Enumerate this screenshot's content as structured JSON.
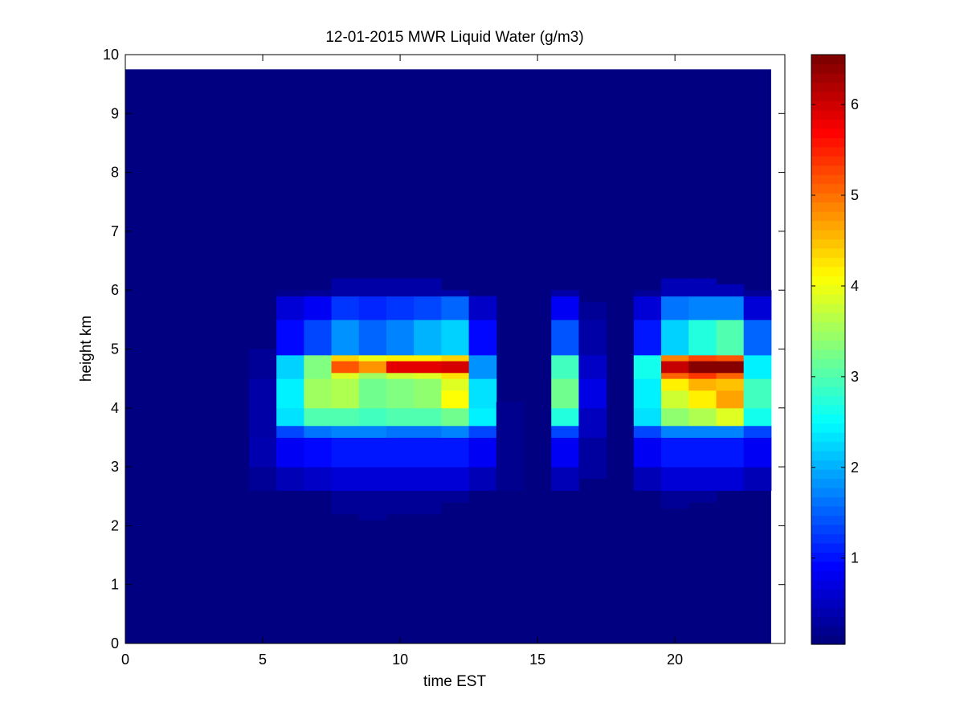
{
  "chart_data": {
    "type": "heatmap",
    "title": "12-01-2015 MWR Liquid Water (g/m3)",
    "xlabel": "time EST",
    "ylabel": "height km",
    "xlim": [
      0,
      24
    ],
    "ylim": [
      0,
      10
    ],
    "xticks": [
      0,
      5,
      10,
      15,
      20
    ],
    "yticks": [
      0,
      1,
      2,
      3,
      4,
      5,
      6,
      7,
      8,
      9,
      10
    ],
    "data_extent": {
      "x": [
        0,
        23.5
      ],
      "y": [
        0,
        9.75
      ]
    },
    "colorbar": {
      "colormap": "jet",
      "range": [
        0.05,
        6.55
      ],
      "ticks": [
        1,
        2,
        3,
        4,
        5,
        6
      ]
    },
    "background_value": 0.05,
    "cells": [
      {
        "t": [
          4.5,
          5.5
        ],
        "values": [
          [
            2.6,
            3.0,
            0.2
          ],
          [
            3.0,
            3.5,
            0.35
          ],
          [
            3.5,
            4.5,
            0.3
          ],
          [
            4.5,
            5.0,
            0.2
          ]
        ]
      },
      {
        "t": [
          5.5,
          6.5
        ],
        "values": [
          [
            2.6,
            3.0,
            0.4
          ],
          [
            3.0,
            3.5,
            0.8
          ],
          [
            3.5,
            3.7,
            1.3
          ],
          [
            3.7,
            4.0,
            2.3
          ],
          [
            4.0,
            4.5,
            2.4
          ],
          [
            4.5,
            4.9,
            2.2
          ],
          [
            4.9,
            5.5,
            0.9
          ],
          [
            5.5,
            5.9,
            0.6
          ],
          [
            5.9,
            6.0,
            0.15
          ]
        ]
      },
      {
        "t": [
          6.5,
          7.5
        ],
        "values": [
          [
            2.6,
            3.0,
            0.5
          ],
          [
            3.0,
            3.5,
            0.9
          ],
          [
            3.5,
            3.7,
            1.6
          ],
          [
            3.7,
            4.0,
            3.0
          ],
          [
            4.0,
            4.5,
            3.5
          ],
          [
            4.5,
            4.9,
            3.3
          ],
          [
            4.9,
            5.5,
            1.3
          ],
          [
            5.5,
            5.9,
            0.8
          ],
          [
            5.9,
            6.0,
            0.2
          ]
        ]
      },
      {
        "t": [
          7.5,
          8.5
        ],
        "values": [
          [
            2.2,
            2.6,
            0.2
          ],
          [
            2.6,
            3.0,
            0.6
          ],
          [
            3.0,
            3.5,
            1.0
          ],
          [
            3.5,
            3.7,
            1.7
          ],
          [
            3.7,
            4.0,
            3.0
          ],
          [
            4.0,
            4.5,
            3.6
          ],
          [
            4.5,
            4.6,
            3.9
          ],
          [
            4.6,
            4.8,
            5.2
          ],
          [
            4.8,
            4.9,
            4.4
          ],
          [
            4.9,
            5.5,
            1.8
          ],
          [
            5.5,
            5.9,
            1.2
          ],
          [
            5.9,
            6.2,
            0.3
          ]
        ]
      },
      {
        "t": [
          8.5,
          9.5
        ],
        "values": [
          [
            2.1,
            2.6,
            0.2
          ],
          [
            2.6,
            3.0,
            0.6
          ],
          [
            3.0,
            3.5,
            1.0
          ],
          [
            3.5,
            3.7,
            1.7
          ],
          [
            3.7,
            4.0,
            2.9
          ],
          [
            4.0,
            4.5,
            3.2
          ],
          [
            4.5,
            4.6,
            3.5
          ],
          [
            4.6,
            4.8,
            4.8
          ],
          [
            4.8,
            4.9,
            4.0
          ],
          [
            4.9,
            5.5,
            1.5
          ],
          [
            5.5,
            5.9,
            1.1
          ],
          [
            5.9,
            6.2,
            0.3
          ]
        ]
      },
      {
        "t": [
          9.5,
          10.5
        ],
        "values": [
          [
            2.2,
            2.6,
            0.2
          ],
          [
            2.6,
            3.0,
            0.6
          ],
          [
            3.0,
            3.5,
            1.0
          ],
          [
            3.5,
            3.7,
            1.6
          ],
          [
            3.7,
            4.0,
            3.0
          ],
          [
            4.0,
            4.5,
            3.3
          ],
          [
            4.5,
            4.6,
            3.8
          ],
          [
            4.6,
            4.8,
            5.9
          ],
          [
            4.8,
            4.9,
            4.2
          ],
          [
            4.9,
            5.5,
            1.7
          ],
          [
            5.5,
            5.9,
            1.2
          ],
          [
            5.9,
            6.2,
            0.3
          ]
        ]
      },
      {
        "t": [
          10.5,
          11.5
        ],
        "values": [
          [
            2.2,
            2.6,
            0.2
          ],
          [
            2.6,
            3.0,
            0.6
          ],
          [
            3.0,
            3.5,
            1.0
          ],
          [
            3.5,
            3.7,
            1.6
          ],
          [
            3.7,
            4.0,
            3.0
          ],
          [
            4.0,
            4.5,
            3.4
          ],
          [
            4.5,
            4.6,
            3.9
          ],
          [
            4.6,
            4.8,
            5.9
          ],
          [
            4.8,
            4.9,
            4.2
          ],
          [
            4.9,
            5.5,
            2.0
          ],
          [
            5.5,
            5.9,
            1.3
          ],
          [
            5.9,
            6.2,
            0.3
          ]
        ]
      },
      {
        "t": [
          11.5,
          12.5
        ],
        "values": [
          [
            2.4,
            2.6,
            0.2
          ],
          [
            2.6,
            3.0,
            0.6
          ],
          [
            3.0,
            3.5,
            1.0
          ],
          [
            3.5,
            3.7,
            1.7
          ],
          [
            3.7,
            4.0,
            3.2
          ],
          [
            4.0,
            4.3,
            4.1
          ],
          [
            4.3,
            4.5,
            3.9
          ],
          [
            4.5,
            4.6,
            4.3
          ],
          [
            4.6,
            4.8,
            6.0
          ],
          [
            4.8,
            4.9,
            4.4
          ],
          [
            4.9,
            5.5,
            2.2
          ],
          [
            5.5,
            5.9,
            1.5
          ],
          [
            5.9,
            6.0,
            0.3
          ]
        ]
      },
      {
        "t": [
          12.5,
          13.5
        ],
        "values": [
          [
            2.6,
            3.0,
            0.4
          ],
          [
            3.0,
            3.5,
            0.8
          ],
          [
            3.5,
            3.7,
            1.3
          ],
          [
            3.7,
            4.0,
            2.4
          ],
          [
            4.0,
            4.5,
            2.3
          ],
          [
            4.5,
            4.9,
            1.8
          ],
          [
            4.9,
            5.5,
            0.9
          ],
          [
            5.5,
            5.9,
            0.5
          ]
        ]
      },
      {
        "t": [
          13.5,
          14.5
        ],
        "values": [
          [
            2.6,
            4.1,
            0.15
          ]
        ]
      },
      {
        "t": [
          15.5,
          16.5
        ],
        "values": [
          [
            2.6,
            3.0,
            0.4
          ],
          [
            3.0,
            3.5,
            0.8
          ],
          [
            3.5,
            3.7,
            1.3
          ],
          [
            3.7,
            4.0,
            2.7
          ],
          [
            4.0,
            4.5,
            3.2
          ],
          [
            4.5,
            4.9,
            2.9
          ],
          [
            4.9,
            5.5,
            1.4
          ],
          [
            5.5,
            5.9,
            0.8
          ],
          [
            5.9,
            6.0,
            0.3
          ]
        ]
      },
      {
        "t": [
          16.5,
          17.5
        ],
        "values": [
          [
            2.8,
            3.5,
            0.25
          ],
          [
            3.5,
            4.0,
            0.45
          ],
          [
            4.0,
            4.5,
            0.7
          ],
          [
            4.5,
            4.9,
            0.5
          ],
          [
            4.9,
            5.5,
            0.3
          ],
          [
            5.5,
            5.8,
            0.2
          ]
        ]
      },
      {
        "t": [
          18.5,
          19.5
        ],
        "values": [
          [
            2.6,
            3.0,
            0.4
          ],
          [
            3.0,
            3.5,
            0.8
          ],
          [
            3.5,
            3.7,
            1.3
          ],
          [
            3.7,
            4.0,
            2.3
          ],
          [
            4.0,
            4.5,
            2.4
          ],
          [
            4.5,
            4.9,
            2.6
          ],
          [
            4.9,
            5.5,
            1.0
          ],
          [
            5.5,
            5.9,
            0.6
          ],
          [
            5.9,
            6.0,
            0.2
          ]
        ]
      },
      {
        "t": [
          19.5,
          20.5
        ],
        "values": [
          [
            2.3,
            2.6,
            0.2
          ],
          [
            2.6,
            3.0,
            0.6
          ],
          [
            3.0,
            3.5,
            1.0
          ],
          [
            3.5,
            3.7,
            1.7
          ],
          [
            3.7,
            4.0,
            3.4
          ],
          [
            4.0,
            4.3,
            3.8
          ],
          [
            4.3,
            4.5,
            4.2
          ],
          [
            4.5,
            4.6,
            5.1
          ],
          [
            4.6,
            4.8,
            6.1
          ],
          [
            4.8,
            4.9,
            4.9
          ],
          [
            4.9,
            5.5,
            2.2
          ],
          [
            5.5,
            5.9,
            1.6
          ],
          [
            5.9,
            6.2,
            0.4
          ]
        ]
      },
      {
        "t": [
          20.5,
          21.5
        ],
        "values": [
          [
            2.4,
            2.6,
            0.2
          ],
          [
            2.6,
            3.0,
            0.6
          ],
          [
            3.0,
            3.5,
            1.0
          ],
          [
            3.5,
            3.7,
            1.7
          ],
          [
            3.7,
            4.0,
            3.6
          ],
          [
            4.0,
            4.3,
            4.2
          ],
          [
            4.3,
            4.5,
            4.6
          ],
          [
            4.5,
            4.6,
            5.4
          ],
          [
            4.6,
            4.8,
            6.5
          ],
          [
            4.8,
            4.9,
            5.3
          ],
          [
            4.9,
            5.5,
            2.7
          ],
          [
            5.5,
            5.9,
            1.7
          ],
          [
            5.9,
            6.2,
            0.4
          ]
        ]
      },
      {
        "t": [
          21.5,
          22.5
        ],
        "values": [
          [
            2.6,
            3.0,
            0.6
          ],
          [
            3.0,
            3.5,
            1.0
          ],
          [
            3.5,
            3.7,
            1.7
          ],
          [
            3.7,
            4.0,
            3.9
          ],
          [
            4.0,
            4.3,
            4.7
          ],
          [
            4.3,
            4.5,
            4.5
          ],
          [
            4.5,
            4.6,
            5.1
          ],
          [
            4.6,
            4.8,
            6.5
          ],
          [
            4.8,
            4.9,
            5.2
          ],
          [
            4.9,
            5.5,
            3.0
          ],
          [
            5.5,
            5.9,
            1.7
          ],
          [
            5.9,
            6.1,
            0.4
          ]
        ]
      },
      {
        "t": [
          22.5,
          23.5
        ],
        "values": [
          [
            2.6,
            3.0,
            0.4
          ],
          [
            3.0,
            3.5,
            0.8
          ],
          [
            3.5,
            3.7,
            1.3
          ],
          [
            3.7,
            4.0,
            2.6
          ],
          [
            4.0,
            4.5,
            2.9
          ],
          [
            4.5,
            4.9,
            2.4
          ],
          [
            4.9,
            5.5,
            1.5
          ],
          [
            5.5,
            5.9,
            0.6
          ],
          [
            5.9,
            6.0,
            0.2
          ]
        ]
      }
    ]
  }
}
